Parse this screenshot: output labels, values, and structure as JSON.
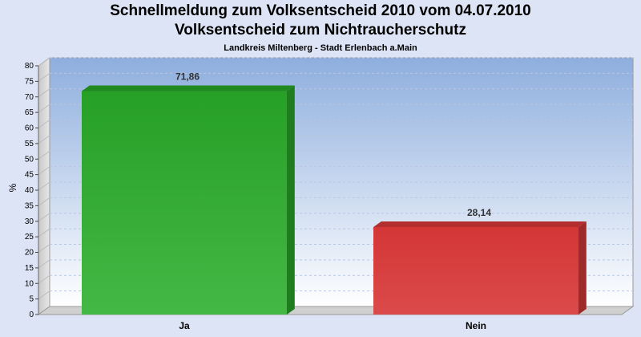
{
  "header": {
    "title_line1": "Schnellmeldung zum Volksentscheid 2010 vom 04.07.2010",
    "title_line2": "Volksentscheid zum Nichtraucherschutz",
    "subtitle": "Landkreis Miltenberg - Stadt Erlenbach a.Main"
  },
  "chart_data": {
    "type": "bar",
    "title": "Schnellmeldung zum Volksentscheid 2010 vom 04.07.2010",
    "subtitle": "Volksentscheid zum Nichtraucherschutz",
    "caption": "Landkreis Miltenberg - Stadt Erlenbach a.Main",
    "categories": [
      "Ja",
      "Nein"
    ],
    "values": [
      71.86,
      28.14
    ],
    "value_labels": [
      "71,86",
      "28,14"
    ],
    "ylabel": "%",
    "ylim": [
      0,
      80
    ],
    "yticks": [
      0,
      5,
      10,
      15,
      20,
      25,
      30,
      35,
      40,
      45,
      50,
      55,
      60,
      65,
      70,
      75,
      80
    ],
    "grid": true,
    "legend": "none",
    "colors": [
      "#2ea82e",
      "#d53a3a"
    ]
  }
}
